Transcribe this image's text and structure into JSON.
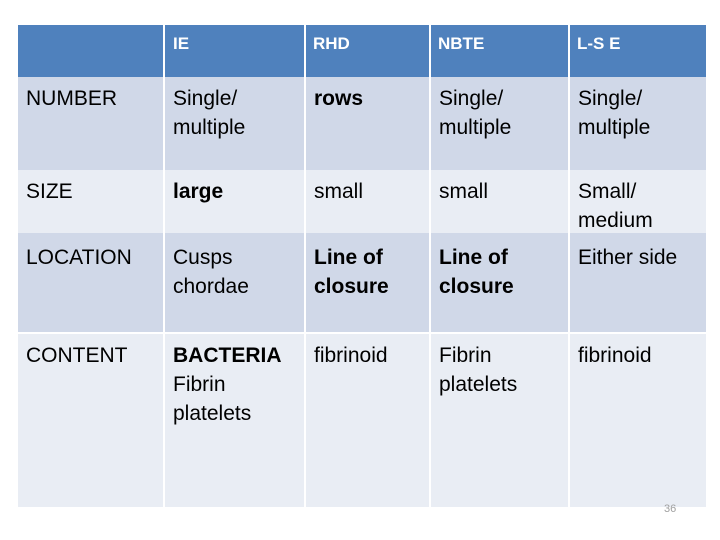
{
  "table": {
    "headers": [
      "",
      "IE",
      "RHD",
      "NBTE",
      "L-S E"
    ],
    "rows": [
      {
        "label": "NUMBER",
        "cells": [
          "Single/ multiple",
          "rows",
          "Single/ multiple",
          "Single/ multiple"
        ]
      },
      {
        "label": "SIZE",
        "cells": [
          "large",
          "small",
          "small",
          "Small/ medium"
        ]
      },
      {
        "label": "LOCATION",
        "cells": [
          "Cusps chordae",
          "Line of closure",
          "Line of closure",
          "Either side"
        ]
      },
      {
        "label": "CONTENT",
        "cells": [
          "BACTERIA",
          "fibrinoid",
          "Fibrin platelets",
          "fibrinoid"
        ],
        "ie_extra": "Fibrin platelets"
      }
    ]
  },
  "colors": {
    "header": "#4f81bd",
    "row_dark": "#d0d8e8",
    "row_light": "#e9edf4"
  },
  "page_number": "36"
}
